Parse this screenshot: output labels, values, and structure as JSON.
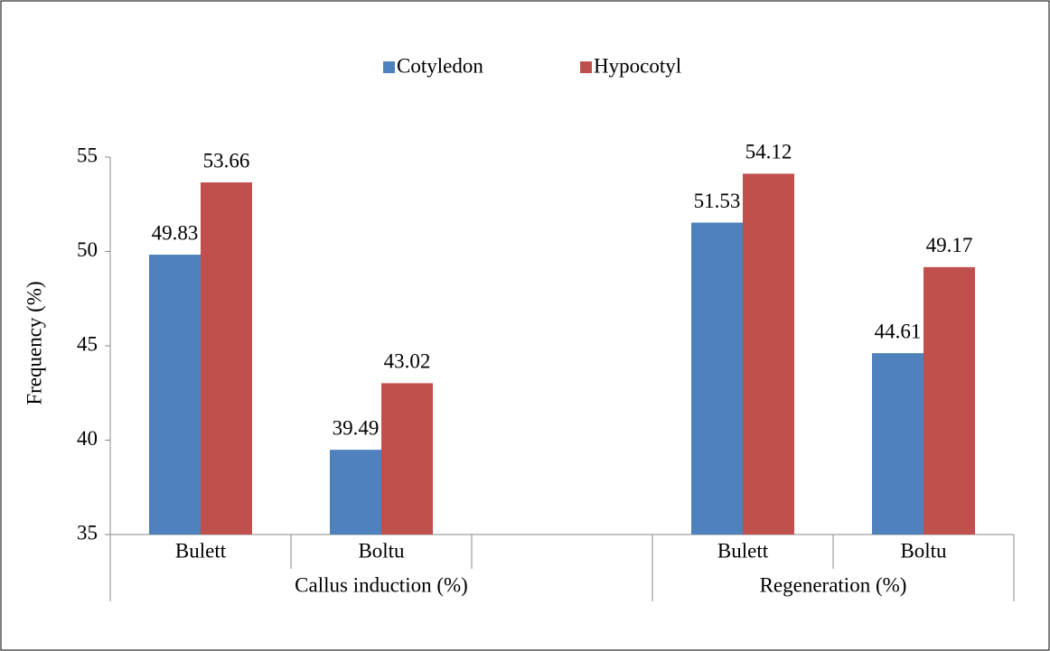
{
  "chart_data": {
    "type": "bar",
    "y_label": "Frequency (%)",
    "categories": [
      "Bulett",
      "Boltu",
      null,
      "Bulett",
      "Boltu"
    ],
    "groups": [
      {
        "name": "Callus induction (%)",
        "count": 3
      },
      {
        "name": "Regeneration (%)",
        "count": 2
      }
    ],
    "series": [
      {
        "name": "Cotyledon",
        "color": "#4f81bd",
        "values": [
          49.83,
          39.49,
          null,
          51.53,
          44.61
        ]
      },
      {
        "name": "Hypocotyl",
        "color": "#c0504d",
        "values": [
          53.66,
          43.02,
          null,
          54.12,
          49.17
        ]
      }
    ],
    "ylim": [
      35,
      55
    ],
    "yticks": [
      35,
      40,
      45,
      50,
      55
    ],
    "grid": false,
    "legend": "top"
  }
}
